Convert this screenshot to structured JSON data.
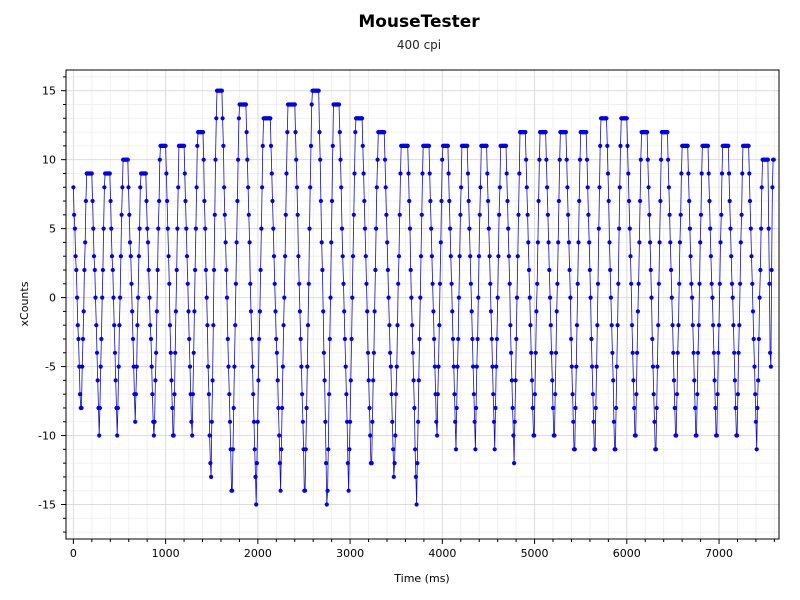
{
  "chart_data": {
    "type": "scatter",
    "title": "MouseTester",
    "subtitle": "400 cpi",
    "xlabel": "Time (ms)",
    "ylabel": "xCounts",
    "xlim": [
      -80,
      7650
    ],
    "ylim": [
      -17.5,
      16.5
    ],
    "x_ticks": [
      0,
      1000,
      2000,
      3000,
      4000,
      5000,
      6000,
      7000
    ],
    "y_ticks": [
      -15,
      -10,
      -5,
      0,
      5,
      10,
      15
    ],
    "grid": true,
    "legend": "none",
    "series": [
      {
        "style": "points-with-line",
        "color": "#0000ee",
        "x_step_ms": 8,
        "cycles": [
          {
            "t": 0,
            "max": 8,
            "min": -9
          },
          {
            "t": 200,
            "max": 9,
            "min": -10
          },
          {
            "t": 395,
            "max": 9,
            "min": -10
          },
          {
            "t": 590,
            "max": 10,
            "min": -9
          },
          {
            "t": 785,
            "max": 9,
            "min": -11
          },
          {
            "t": 1000,
            "max": 11,
            "min": -11
          },
          {
            "t": 1200,
            "max": 11,
            "min": -11
          },
          {
            "t": 1405,
            "max": 12,
            "min": -14
          },
          {
            "t": 1610,
            "max": 15,
            "min": -15
          },
          {
            "t": 1870,
            "max": 14,
            "min": -15
          },
          {
            "t": 2135,
            "max": 13,
            "min": -14
          },
          {
            "t": 2400,
            "max": 14,
            "min": -15
          },
          {
            "t": 2660,
            "max": 15,
            "min": -16
          },
          {
            "t": 2880,
            "max": 14,
            "min": -14
          },
          {
            "t": 3130,
            "max": 13,
            "min": -13
          },
          {
            "t": 3370,
            "max": 12,
            "min": -14
          },
          {
            "t": 3625,
            "max": 11,
            "min": -15
          },
          {
            "t": 3855,
            "max": 11,
            "min": -11
          },
          {
            "t": 4060,
            "max": 11,
            "min": -11
          },
          {
            "t": 4270,
            "max": 11,
            "min": -11
          },
          {
            "t": 4480,
            "max": 11,
            "min": -11
          },
          {
            "t": 4690,
            "max": 11,
            "min": -12
          },
          {
            "t": 4900,
            "max": 12,
            "min": -11
          },
          {
            "t": 5120,
            "max": 12,
            "min": -11
          },
          {
            "t": 5340,
            "max": 12,
            "min": -12
          },
          {
            "t": 5560,
            "max": 12,
            "min": -12
          },
          {
            "t": 5780,
            "max": 13,
            "min": -12
          },
          {
            "t": 6000,
            "max": 13,
            "min": -11
          },
          {
            "t": 6220,
            "max": 12,
            "min": -12
          },
          {
            "t": 6440,
            "max": 12,
            "min": -11
          },
          {
            "t": 6660,
            "max": 11,
            "min": -11
          },
          {
            "t": 6880,
            "max": 11,
            "min": -11
          },
          {
            "t": 7100,
            "max": 11,
            "min": -11
          },
          {
            "t": 7320,
            "max": 11,
            "min": -11
          },
          {
            "t": 7530,
            "max": 10,
            "min": -7
          }
        ],
        "end_time": 7600
      }
    ]
  }
}
